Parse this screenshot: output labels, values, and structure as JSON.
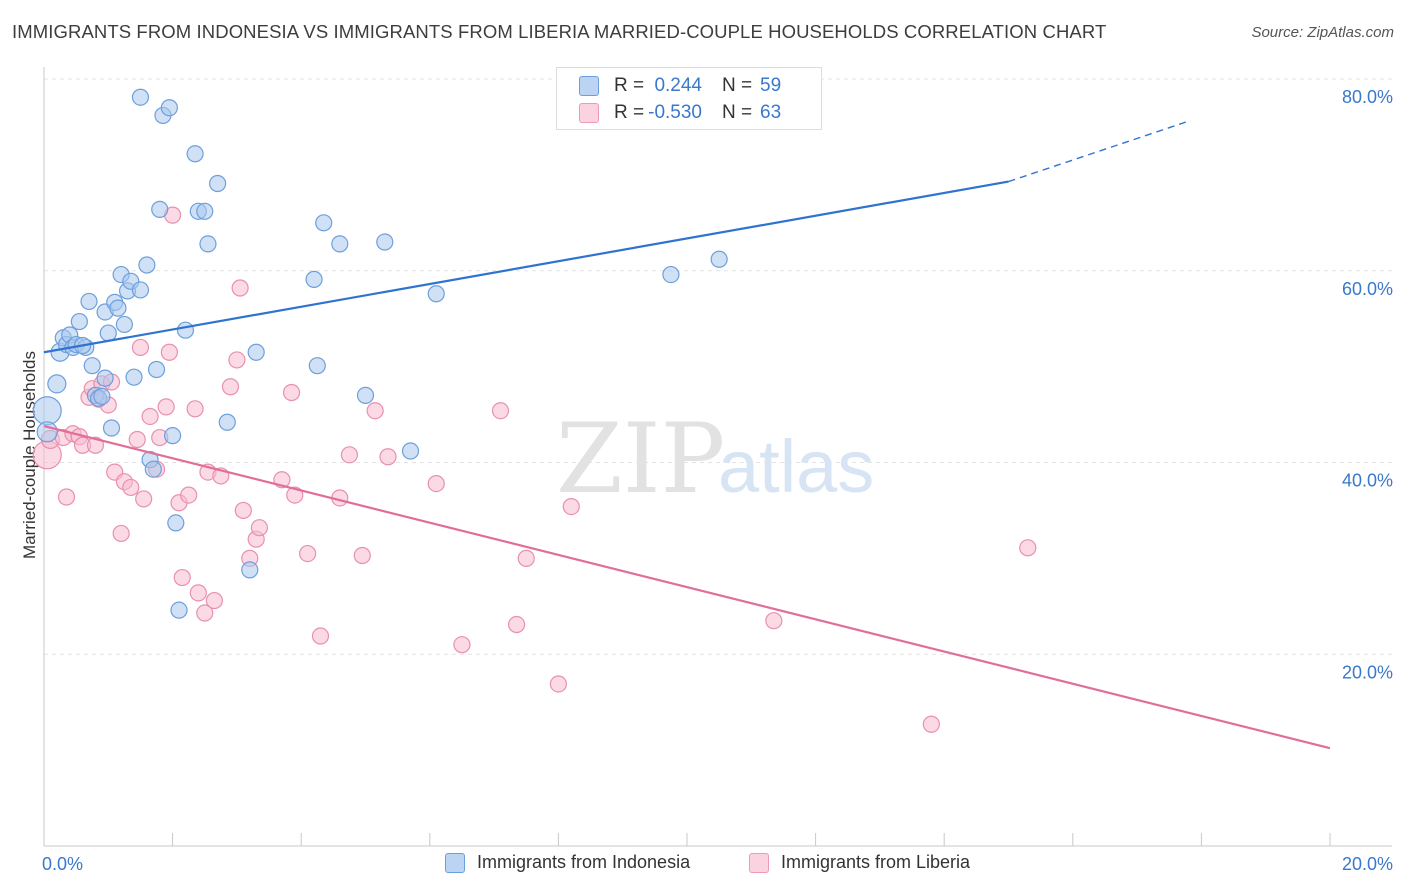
{
  "title": "IMMIGRANTS FROM INDONESIA VS IMMIGRANTS FROM LIBERIA MARRIED-COUPLE HOUSEHOLDS CORRELATION CHART",
  "source": "Source: ZipAtlas.com",
  "watermark": {
    "zip": "ZIP",
    "atlas": "atlas"
  },
  "colors": {
    "blue_fill": "#a9c8ef",
    "blue_stroke": "#6d9fdc",
    "blue_line": "#2f73d1",
    "pink_fill": "#f8bcd0",
    "pink_stroke": "#e890ae",
    "pink_line": "#e06d9a",
    "axis_text": "#3a78cc",
    "grid": "#e3e3e3"
  },
  "legend_top": {
    "rows": [
      {
        "r_label": "R =",
        "r_value": "0.244",
        "n_label": "N =",
        "n_value": "59",
        "color": "blue"
      },
      {
        "r_label": "R =",
        "r_value": "-0.530",
        "n_label": "N =",
        "n_value": "63",
        "color": "pink"
      }
    ]
  },
  "legend_bottom": [
    {
      "label": "Immigrants from Indonesia",
      "color": "blue"
    },
    {
      "label": "Immigrants from Liberia",
      "color": "pink"
    }
  ],
  "chart_data": {
    "type": "scatter",
    "title": "IMMIGRANTS FROM INDONESIA VS IMMIGRANTS FROM LIBERIA MARRIED-COUPLE HOUSEHOLDS CORRELATION CHART",
    "xlabel": "",
    "ylabel": "Married-couple Households",
    "xlim": [
      0,
      20
    ],
    "ylim": [
      0,
      80
    ],
    "x_tick_labels": [
      {
        "value": 0,
        "label": "0.0%"
      },
      {
        "value": 20,
        "label": "20.0%"
      }
    ],
    "y_tick_labels": [
      {
        "value": 20,
        "label": "20.0%"
      },
      {
        "value": 40,
        "label": "40.0%"
      },
      {
        "value": 60,
        "label": "60.0%"
      },
      {
        "value": 80,
        "label": "80.0%"
      }
    ],
    "grid": true,
    "legend": "bottom-center",
    "series": [
      {
        "name": "Immigrants from Indonesia",
        "color": "blue",
        "r": 0.244,
        "n": 59,
        "trend": {
          "x0": 0,
          "y0": 51.5,
          "x1": 15.0,
          "y1": 69.3,
          "dashed_to_x": 17.8,
          "dashed_to_y": 75.6
        },
        "points": [
          [
            0.05,
            45.4,
            14
          ],
          [
            0.05,
            43.2,
            10
          ],
          [
            0.2,
            48.2,
            9
          ],
          [
            0.25,
            51.5,
            9
          ],
          [
            0.3,
            53.0,
            8
          ],
          [
            0.35,
            52.3,
            8
          ],
          [
            0.4,
            53.3,
            8
          ],
          [
            0.45,
            52.0,
            8
          ],
          [
            0.5,
            52.3,
            8
          ],
          [
            0.55,
            54.7,
            8
          ],
          [
            0.65,
            52.0,
            8
          ],
          [
            0.7,
            56.8,
            8
          ],
          [
            0.75,
            50.1,
            8
          ],
          [
            0.8,
            47.0,
            8
          ],
          [
            0.85,
            46.7,
            8
          ],
          [
            0.95,
            48.8,
            8
          ],
          [
            0.95,
            55.7,
            8
          ],
          [
            1.0,
            53.5,
            8
          ],
          [
            1.05,
            43.6,
            8
          ],
          [
            1.1,
            56.7,
            8
          ],
          [
            1.15,
            56.1,
            8
          ],
          [
            1.2,
            59.6,
            8
          ],
          [
            1.25,
            54.4,
            8
          ],
          [
            1.3,
            57.9,
            8
          ],
          [
            1.35,
            58.9,
            8
          ],
          [
            1.4,
            48.9,
            8
          ],
          [
            1.5,
            58.0,
            8
          ],
          [
            1.5,
            78.1,
            8
          ],
          [
            1.6,
            60.6,
            8
          ],
          [
            1.65,
            40.3,
            8
          ],
          [
            1.7,
            39.3,
            8
          ],
          [
            1.75,
            49.7,
            8
          ],
          [
            1.8,
            66.4,
            8
          ],
          [
            1.85,
            76.2,
            8
          ],
          [
            1.95,
            77.0,
            8
          ],
          [
            2.0,
            42.8,
            8
          ],
          [
            2.05,
            33.7,
            8
          ],
          [
            2.1,
            24.6,
            8
          ],
          [
            2.2,
            53.8,
            8
          ],
          [
            2.35,
            72.2,
            8
          ],
          [
            2.4,
            66.2,
            8
          ],
          [
            2.5,
            66.2,
            8
          ],
          [
            2.55,
            62.8,
            8
          ],
          [
            2.7,
            69.1,
            8
          ],
          [
            2.85,
            44.2,
            8
          ],
          [
            3.2,
            28.8,
            8
          ],
          [
            3.3,
            51.5,
            8
          ],
          [
            4.2,
            59.1,
            8
          ],
          [
            4.25,
            50.1,
            8
          ],
          [
            4.35,
            65.0,
            8
          ],
          [
            4.6,
            62.8,
            8
          ],
          [
            5.0,
            47.0,
            8
          ],
          [
            5.3,
            63.0,
            8
          ],
          [
            5.7,
            41.2,
            8
          ],
          [
            6.1,
            57.6,
            8
          ],
          [
            9.75,
            59.6,
            8
          ],
          [
            10.5,
            61.2,
            8
          ],
          [
            0.6,
            52.2,
            8
          ],
          [
            0.9,
            46.9,
            8
          ]
        ]
      },
      {
        "name": "Immigrants from Liberia",
        "color": "pink",
        "r": -0.53,
        "n": 63,
        "trend": {
          "x0": 0,
          "y0": 43.8,
          "x1": 20,
          "y1": 10.2
        },
        "points": [
          [
            0.05,
            40.8,
            14
          ],
          [
            0.1,
            42.4,
            9
          ],
          [
            0.3,
            42.6,
            8
          ],
          [
            0.35,
            36.4,
            8
          ],
          [
            0.45,
            43.0,
            8
          ],
          [
            0.55,
            42.7,
            8
          ],
          [
            0.6,
            41.8,
            8
          ],
          [
            0.7,
            46.8,
            8
          ],
          [
            0.75,
            47.7,
            8
          ],
          [
            0.8,
            41.8,
            8
          ],
          [
            0.85,
            46.6,
            8
          ],
          [
            0.9,
            48.2,
            8
          ],
          [
            1.0,
            46.0,
            8
          ],
          [
            1.05,
            48.4,
            8
          ],
          [
            1.1,
            39.0,
            8
          ],
          [
            1.2,
            32.6,
            8
          ],
          [
            1.25,
            38.0,
            8
          ],
          [
            1.35,
            37.4,
            8
          ],
          [
            1.45,
            42.4,
            8
          ],
          [
            1.5,
            52.0,
            8
          ],
          [
            1.55,
            36.2,
            8
          ],
          [
            1.65,
            44.8,
            8
          ],
          [
            1.75,
            39.3,
            8
          ],
          [
            1.8,
            42.6,
            8
          ],
          [
            1.9,
            45.8,
            8
          ],
          [
            1.95,
            51.5,
            8
          ],
          [
            2.0,
            65.8,
            8
          ],
          [
            2.1,
            35.8,
            8
          ],
          [
            2.15,
            28.0,
            8
          ],
          [
            2.25,
            36.6,
            8
          ],
          [
            2.35,
            45.6,
            8
          ],
          [
            2.4,
            26.4,
            8
          ],
          [
            2.5,
            24.3,
            8
          ],
          [
            2.55,
            39.0,
            8
          ],
          [
            2.65,
            25.6,
            8
          ],
          [
            2.75,
            38.6,
            8
          ],
          [
            2.9,
            47.9,
            8
          ],
          [
            3.0,
            50.7,
            8
          ],
          [
            3.05,
            58.2,
            8
          ],
          [
            3.1,
            35.0,
            8
          ],
          [
            3.2,
            30.0,
            8
          ],
          [
            3.3,
            32.0,
            8
          ],
          [
            3.35,
            33.2,
            8
          ],
          [
            3.7,
            38.2,
            8
          ],
          [
            3.85,
            47.3,
            8
          ],
          [
            3.9,
            36.6,
            8
          ],
          [
            4.1,
            30.5,
            8
          ],
          [
            4.3,
            21.9,
            8
          ],
          [
            4.6,
            36.3,
            8
          ],
          [
            4.75,
            40.8,
            8
          ],
          [
            4.95,
            30.3,
            8
          ],
          [
            5.15,
            45.4,
            8
          ],
          [
            5.35,
            40.6,
            8
          ],
          [
            6.1,
            37.8,
            8
          ],
          [
            6.5,
            21.0,
            8
          ],
          [
            7.1,
            45.4,
            8
          ],
          [
            7.35,
            23.1,
            8
          ],
          [
            7.5,
            30.0,
            8
          ],
          [
            8.0,
            16.9,
            8
          ],
          [
            8.2,
            35.4,
            8
          ],
          [
            11.35,
            23.5,
            8
          ],
          [
            13.8,
            12.7,
            8
          ],
          [
            15.3,
            31.1,
            8
          ]
        ]
      }
    ]
  }
}
